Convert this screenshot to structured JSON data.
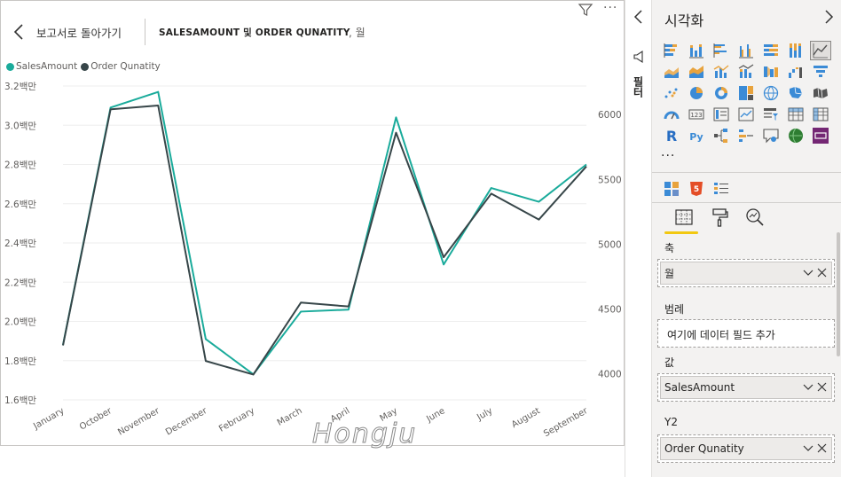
{
  "header": {
    "back_label": "보고서로 돌아가기",
    "title": "SALESAMOUNT 및 ORDER QUNATITY",
    "title_sub": ", 월"
  },
  "icons": {
    "back": "chevron-left-icon",
    "filter": "filter-icon",
    "more": "more-options-icon"
  },
  "filters_strip": {
    "label": "필터"
  },
  "panel": {
    "title": "시각화",
    "more": "...",
    "sections": {
      "axis_label": "축",
      "axis_field": "월",
      "legend_label": "범례",
      "legend_placeholder": "여기에 데이터 필드 추가",
      "values_label": "값",
      "values_field": "SalesAmount",
      "y2_label": "Y2",
      "y2_field": "Order Qunatity"
    }
  },
  "watermark": "Hongju",
  "colors": {
    "sales": "#1aab9b",
    "orders": "#374649",
    "accent": "#f2c811"
  },
  "chart_data": {
    "type": "line",
    "categories": [
      "January",
      "October",
      "November",
      "December",
      "February",
      "March",
      "April",
      "May",
      "June",
      "July",
      "August",
      "September"
    ],
    "series": [
      {
        "name": "SalesAmount",
        "axis": "left",
        "values": [
          1.88,
          3.09,
          3.17,
          1.91,
          1.73,
          2.05,
          2.06,
          3.04,
          2.29,
          2.68,
          2.61,
          2.8
        ]
      },
      {
        "name": "Order Qunatity",
        "axis": "right",
        "values": [
          4220,
          6040,
          6070,
          4100,
          3995,
          4550,
          4520,
          5860,
          4900,
          5390,
          5190,
          5600
        ]
      }
    ],
    "left_axis": {
      "min": 1.6,
      "max": 3.2,
      "step": 0.2,
      "ticks": [
        "1.6백만",
        "1.8백만",
        "2.0백만",
        "2.2백만",
        "2.4백만",
        "2.6백만",
        "2.8백만",
        "3.0백만",
        "3.2백만"
      ]
    },
    "right_axis": {
      "min": 3800,
      "max": 6220,
      "ticks": [
        "4000",
        "4500",
        "5000",
        "5500",
        "6000"
      ]
    },
    "legend": "top-left",
    "grid": true
  }
}
